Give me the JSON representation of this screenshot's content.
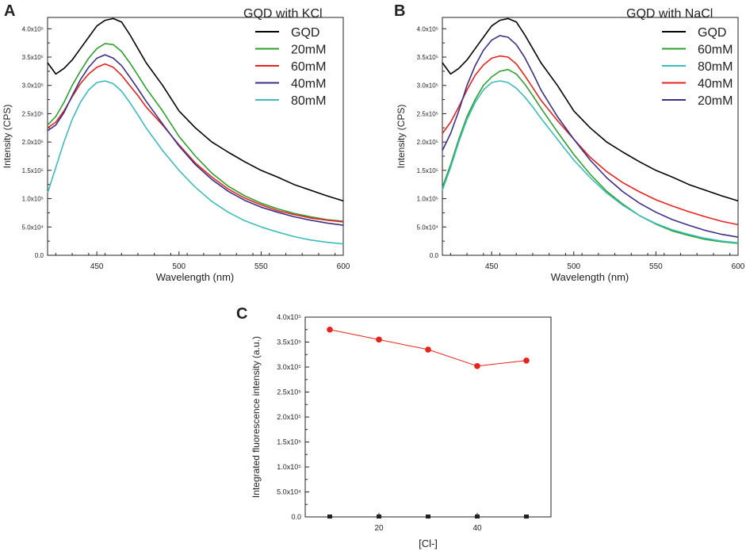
{
  "chart_data": [
    {
      "panel": "A",
      "type": "line",
      "title": "GQD with KCl",
      "xlabel": "Wavelength (nm)",
      "ylabel": "Intensity (CPS)",
      "xlim": [
        420,
        600
      ],
      "ylim": [
        0,
        420000
      ],
      "xticks": [
        {
          "v": 450,
          "label": "450"
        },
        {
          "v": 500,
          "label": "500"
        },
        {
          "v": 550,
          "label": "550"
        },
        {
          "v": 600,
          "label": "600"
        }
      ],
      "yticks": [
        {
          "v": 0,
          "label": "0.0"
        },
        {
          "v": 50000,
          "label": "5.0x10⁴"
        },
        {
          "v": 100000,
          "label": "1.0x10⁵"
        },
        {
          "v": 150000,
          "label": "1.5x10⁵"
        },
        {
          "v": 200000,
          "label": "2.0x10⁵"
        },
        {
          "v": 250000,
          "label": "2.5x10⁵"
        },
        {
          "v": 300000,
          "label": "3.0x10⁵"
        },
        {
          "v": 350000,
          "label": "3.5x10⁵"
        },
        {
          "v": 400000,
          "label": "4.0x10⁵"
        }
      ],
      "legend_position": "top-right",
      "series": [
        {
          "name": "GQD",
          "color": "#000000",
          "x": [
            420,
            425,
            430,
            435,
            440,
            445,
            450,
            455,
            460,
            465,
            470,
            475,
            480,
            490,
            500,
            510,
            520,
            530,
            540,
            550,
            560,
            570,
            580,
            590,
            600
          ],
          "y": [
            340000,
            320000,
            330000,
            345000,
            365000,
            385000,
            405000,
            415000,
            418000,
            412000,
            390000,
            365000,
            340000,
            300000,
            255000,
            225000,
            200000,
            182000,
            165000,
            150000,
            138000,
            125000,
            115000,
            105000,
            96000
          ]
        },
        {
          "name": "20mM",
          "color": "#2ca02c",
          "x": [
            420,
            425,
            430,
            435,
            440,
            445,
            450,
            455,
            460,
            465,
            470,
            475,
            480,
            490,
            500,
            510,
            520,
            530,
            540,
            550,
            560,
            570,
            580,
            590,
            600
          ],
          "y": [
            230000,
            245000,
            270000,
            300000,
            325000,
            348000,
            365000,
            374000,
            372000,
            360000,
            340000,
            318000,
            295000,
            255000,
            210000,
            175000,
            145000,
            122000,
            105000,
            92000,
            82000,
            74000,
            68000,
            63000,
            60000
          ]
        },
        {
          "name": "60mM",
          "color": "#e8231b",
          "x": [
            420,
            425,
            430,
            435,
            440,
            445,
            450,
            455,
            460,
            465,
            470,
            475,
            480,
            490,
            500,
            510,
            520,
            530,
            540,
            550,
            560,
            570,
            580,
            590,
            600
          ],
          "y": [
            225000,
            235000,
            255000,
            280000,
            303000,
            320000,
            332000,
            338000,
            332000,
            318000,
            300000,
            282000,
            262000,
            230000,
            195000,
            163000,
            138000,
            117000,
            101000,
            89000,
            79000,
            72000,
            66000,
            62000,
            59000
          ]
        },
        {
          "name": "40mM",
          "color": "#3b2f8a",
          "x": [
            420,
            425,
            430,
            435,
            440,
            445,
            450,
            455,
            460,
            465,
            470,
            475,
            480,
            490,
            500,
            510,
            520,
            530,
            540,
            550,
            560,
            570,
            580,
            590,
            600
          ],
          "y": [
            220000,
            230000,
            252000,
            282000,
            310000,
            332000,
            348000,
            354000,
            348000,
            335000,
            315000,
            294000,
            272000,
            232000,
            193000,
            160000,
            134000,
            113000,
            97000,
            85000,
            76000,
            68000,
            62000,
            57000,
            53000
          ]
        },
        {
          "name": "80mM",
          "color": "#3cbcbc",
          "x": [
            420,
            425,
            430,
            435,
            440,
            445,
            450,
            455,
            460,
            465,
            470,
            475,
            480,
            490,
            500,
            510,
            520,
            530,
            540,
            550,
            560,
            570,
            580,
            590,
            600
          ],
          "y": [
            110000,
            155000,
            200000,
            240000,
            270000,
            292000,
            305000,
            308000,
            303000,
            290000,
            270000,
            248000,
            225000,
            185000,
            150000,
            120000,
            95000,
            76000,
            61000,
            50000,
            41000,
            33000,
            27000,
            23000,
            20000
          ]
        }
      ]
    },
    {
      "panel": "B",
      "type": "line",
      "title": "GQD with NaCl",
      "xlabel": "Wavelength (nm)",
      "ylabel": "Intensity (CPS)",
      "xlim": [
        420,
        600
      ],
      "ylim": [
        0,
        420000
      ],
      "xticks": [
        {
          "v": 450,
          "label": "450"
        },
        {
          "v": 500,
          "label": "500"
        },
        {
          "v": 550,
          "label": "550"
        },
        {
          "v": 600,
          "label": "600"
        }
      ],
      "yticks": [
        {
          "v": 0,
          "label": "0.0"
        },
        {
          "v": 50000,
          "label": "5.0x10⁴"
        },
        {
          "v": 100000,
          "label": "1.0x10⁵"
        },
        {
          "v": 150000,
          "label": "1.5x10⁵"
        },
        {
          "v": 200000,
          "label": "2.0x10⁵"
        },
        {
          "v": 250000,
          "label": "2.5x10⁵"
        },
        {
          "v": 300000,
          "label": "3.0x10⁵"
        },
        {
          "v": 350000,
          "label": "3.5x10⁵"
        },
        {
          "v": 400000,
          "label": "4.0x10⁵"
        }
      ],
      "legend_position": "top-right",
      "series": [
        {
          "name": "GQD",
          "color": "#000000",
          "x": [
            420,
            425,
            430,
            435,
            440,
            445,
            450,
            455,
            460,
            465,
            470,
            475,
            480,
            490,
            500,
            510,
            520,
            530,
            540,
            550,
            560,
            570,
            580,
            590,
            600
          ],
          "y": [
            340000,
            320000,
            330000,
            345000,
            365000,
            385000,
            405000,
            415000,
            418000,
            412000,
            390000,
            365000,
            340000,
            300000,
            255000,
            225000,
            200000,
            182000,
            165000,
            150000,
            138000,
            125000,
            115000,
            105000,
            96000
          ]
        },
        {
          "name": "60mM",
          "color": "#2ca02c",
          "x": [
            420,
            425,
            430,
            435,
            440,
            445,
            450,
            455,
            460,
            465,
            470,
            475,
            480,
            490,
            500,
            510,
            520,
            530,
            540,
            550,
            560,
            570,
            580,
            590,
            600
          ],
          "y": [
            120000,
            160000,
            205000,
            245000,
            275000,
            300000,
            315000,
            325000,
            328000,
            320000,
            303000,
            282000,
            260000,
            218000,
            178000,
            143000,
            113000,
            90000,
            70000,
            55000,
            43000,
            35000,
            28000,
            24000,
            21000
          ]
        },
        {
          "name": "80mM",
          "color": "#3cbcbc",
          "x": [
            420,
            425,
            430,
            435,
            440,
            445,
            450,
            455,
            460,
            465,
            470,
            475,
            480,
            490,
            500,
            510,
            520,
            530,
            540,
            550,
            560,
            570,
            580,
            590,
            600
          ],
          "y": [
            115000,
            155000,
            200000,
            240000,
            270000,
            292000,
            305000,
            308000,
            305000,
            295000,
            280000,
            262000,
            242000,
            205000,
            168000,
            137000,
            110000,
            88000,
            70000,
            56000,
            45000,
            37000,
            30000,
            25000,
            22000
          ]
        },
        {
          "name": "40mM",
          "color": "#e8231b",
          "x": [
            420,
            425,
            430,
            435,
            440,
            445,
            450,
            455,
            460,
            465,
            470,
            475,
            480,
            490,
            500,
            510,
            520,
            530,
            540,
            550,
            560,
            570,
            580,
            590,
            600
          ],
          "y": [
            215000,
            235000,
            262000,
            292000,
            318000,
            336000,
            348000,
            352000,
            350000,
            338000,
            318000,
            296000,
            274000,
            238000,
            205000,
            173000,
            148000,
            128000,
            112000,
            98000,
            87000,
            77000,
            68000,
            60000,
            54000
          ]
        },
        {
          "name": "20mM",
          "color": "#3b2f8a",
          "x": [
            420,
            425,
            430,
            435,
            440,
            445,
            450,
            455,
            460,
            465,
            470,
            475,
            480,
            490,
            500,
            510,
            520,
            530,
            540,
            550,
            560,
            570,
            580,
            590,
            600
          ],
          "y": [
            185000,
            215000,
            255000,
            300000,
            335000,
            362000,
            380000,
            388000,
            385000,
            372000,
            350000,
            322000,
            292000,
            245000,
            205000,
            168000,
            137000,
            112000,
            92000,
            76000,
            63000,
            53000,
            44000,
            37000,
            32000
          ]
        }
      ]
    },
    {
      "panel": "C",
      "type": "line",
      "title": "",
      "xlabel": "[Cl-]",
      "ylabel": "Integrated fluorescence intensity (a.u.)",
      "xlim": [
        5,
        55
      ],
      "ylim": [
        0,
        400000
      ],
      "xticks": [
        {
          "v": 20,
          "label": "20"
        },
        {
          "v": 40,
          "label": "40"
        }
      ],
      "minor_xticks": [
        10,
        20,
        30,
        40,
        50
      ],
      "yticks": [
        {
          "v": 0,
          "label": "0.0"
        },
        {
          "v": 50000,
          "label": "5.0x10⁴"
        },
        {
          "v": 100000,
          "label": "1.0x10⁵"
        },
        {
          "v": 150000,
          "label": "1.5x10⁵"
        },
        {
          "v": 200000,
          "label": "2.0x10⁵"
        },
        {
          "v": 250000,
          "label": "2.5x10⁵"
        },
        {
          "v": 300000,
          "label": "3.0x10⁵"
        },
        {
          "v": 350000,
          "label": "3.5x10⁵"
        },
        {
          "v": 400000,
          "label": "4.0x10⁵"
        }
      ],
      "series": [
        {
          "name": "",
          "color": "#e8231b",
          "x": [
            10,
            20,
            30,
            40,
            50
          ],
          "y": [
            375000,
            355000,
            335000,
            302000,
            313000
          ]
        }
      ],
      "baseline_markers": {
        "color": "#222222",
        "x": [
          10,
          20,
          30,
          40,
          50
        ],
        "y": [
          0,
          0,
          0,
          0,
          0
        ]
      }
    }
  ]
}
